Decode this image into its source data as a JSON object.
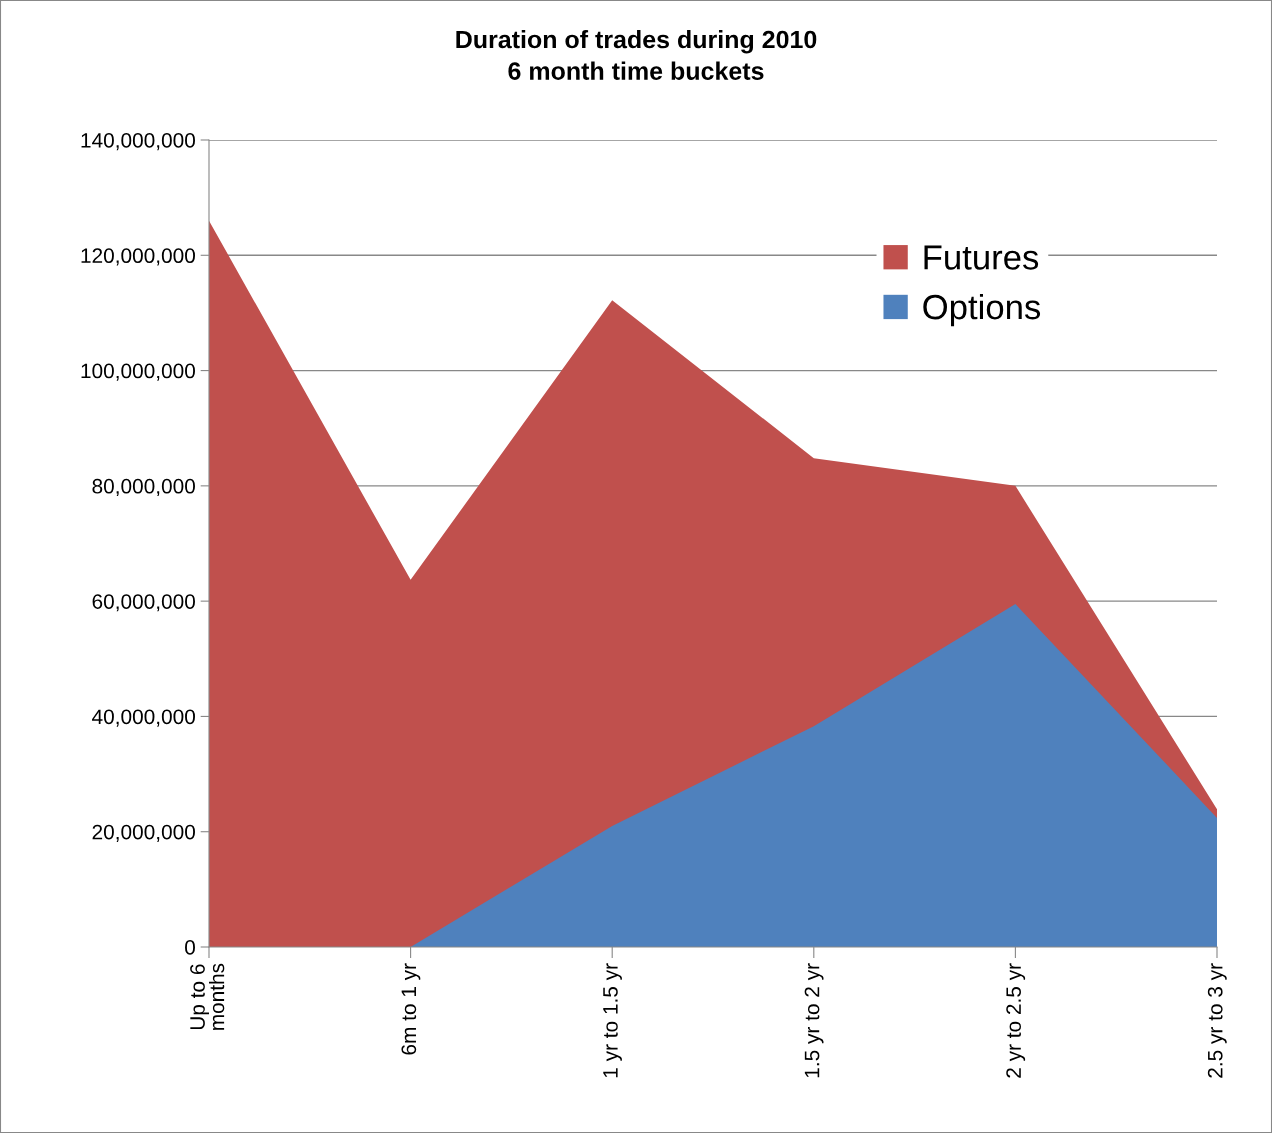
{
  "chart_data": {
    "type": "area",
    "title": "Duration of trades during 2010\n6 month time buckets",
    "categories": [
      "Up to 6\nmonths",
      "6m to 1 yr",
      "1 yr to 1.5 yr",
      "1.5 yr to 2 yr",
      "2 yr to 2.5 yr",
      "2.5 yr to 3 yr"
    ],
    "series": [
      {
        "name": "Futures",
        "color": "#c0504d",
        "values": [
          126000000,
          63700000,
          112200000,
          84800000,
          80000000,
          23900000
        ]
      },
      {
        "name": "Options",
        "color": "#4f81bd",
        "values": [
          0,
          0,
          21000000,
          38300000,
          59500000,
          22400000
        ]
      }
    ],
    "ylim": [
      0,
      140000000
    ],
    "yticks": [
      {
        "value": 0,
        "label": "0"
      },
      {
        "value": 20000000,
        "label": "20,000,000"
      },
      {
        "value": 40000000,
        "label": "40,000,000"
      },
      {
        "value": 60000000,
        "label": "60,000,000"
      },
      {
        "value": 80000000,
        "label": "80,000,000"
      },
      {
        "value": 100000000,
        "label": "100,000,000"
      },
      {
        "value": 120000000,
        "label": "120,000,000"
      },
      {
        "value": 140000000,
        "label": "140,000,000"
      }
    ],
    "grid": "y",
    "legend": "right"
  }
}
